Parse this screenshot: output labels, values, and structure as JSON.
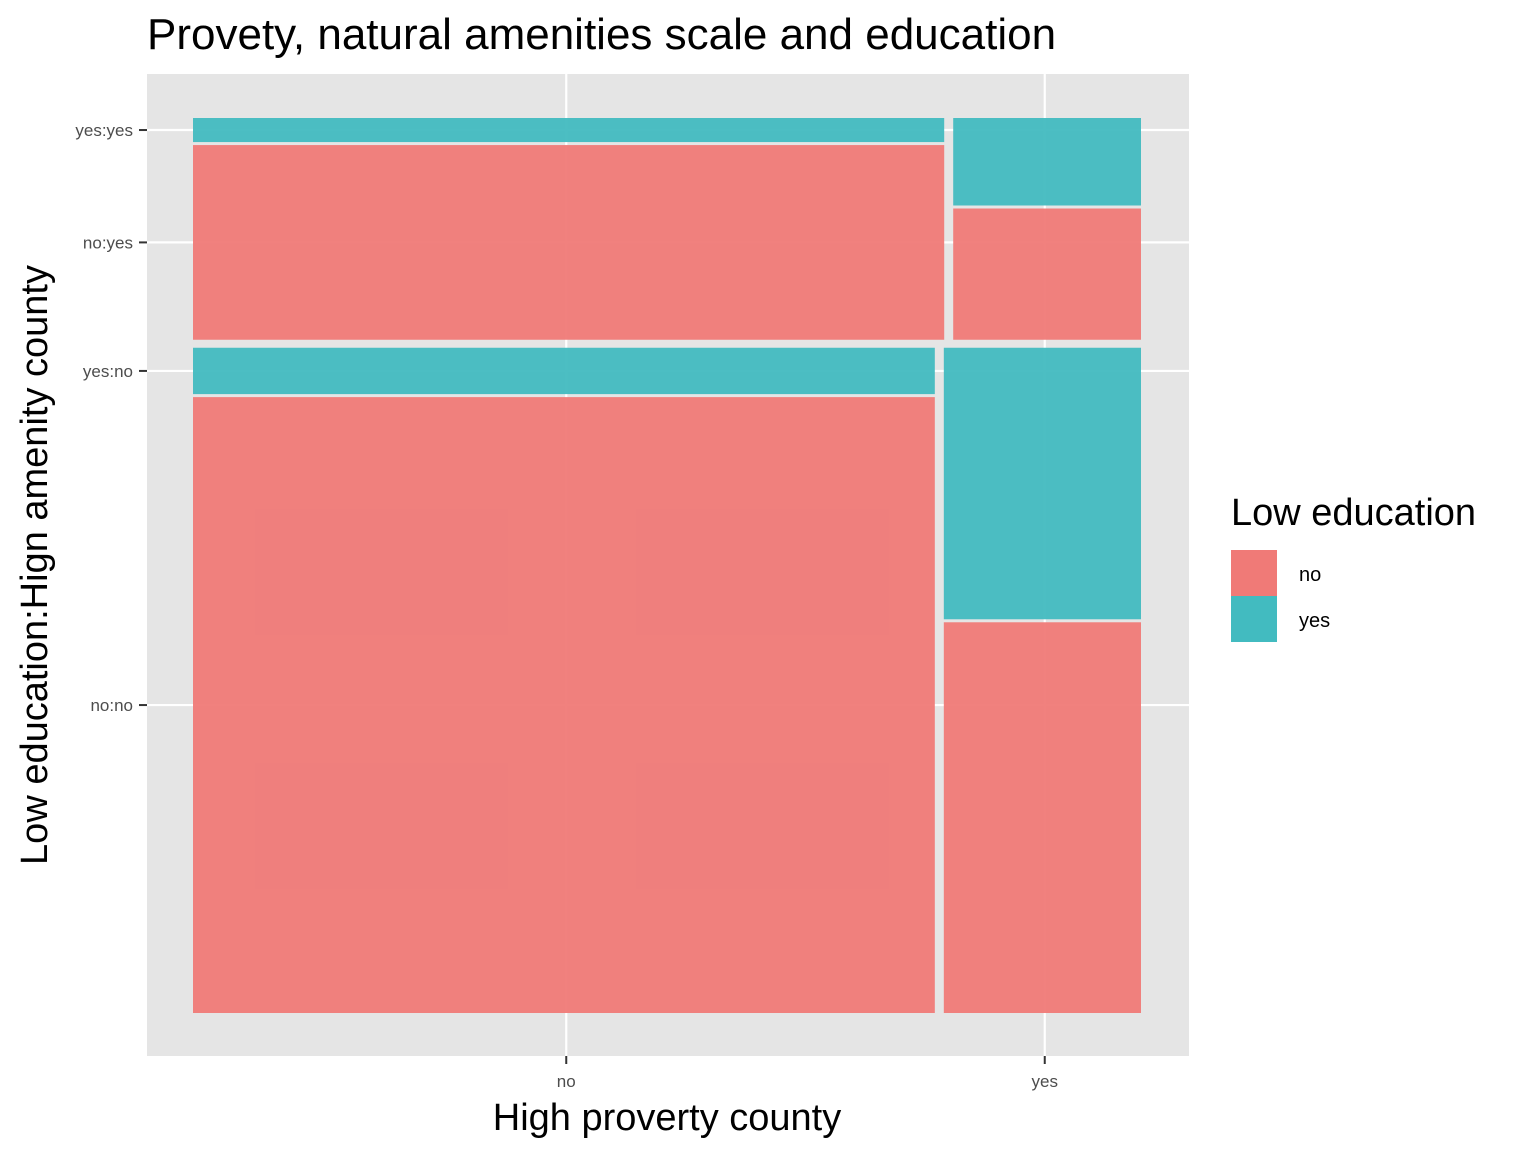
{
  "chart_data": {
    "type": "mosaic",
    "title": "Provety, natural amenities scale and education",
    "xlabel": "High proverty county",
    "ylabel": "Low education:Hign amenity county",
    "x_categories": [
      "no",
      "yes"
    ],
    "y_categories": [
      "no:no",
      "yes:no",
      "no:yes",
      "yes:yes"
    ],
    "legend": {
      "title": "Low education",
      "placement": "right",
      "entries": [
        {
          "label": "no",
          "color": "#F07A77"
        },
        {
          "label": "yes",
          "color": "#42BBC0"
        }
      ]
    },
    "colors": {
      "no": "#F07A77",
      "yes": "#42BBC0"
    },
    "panel_background": "#E5E5E5",
    "grid": true,
    "high_amenity_share": {
      "no": 0.75,
      "yes": 0.25
    },
    "cells": [
      {
        "amenity": "no",
        "poverty": "no",
        "poverty_share": 0.79,
        "low_education_share": {
          "no": 0.93,
          "yes": 0.07
        }
      },
      {
        "amenity": "no",
        "poverty": "yes",
        "poverty_share": 0.21,
        "low_education_share": {
          "no": 0.59,
          "yes": 0.41
        }
      },
      {
        "amenity": "yes",
        "poverty": "no",
        "poverty_share": 0.8,
        "low_education_share": {
          "no": 0.89,
          "yes": 0.11
        }
      },
      {
        "amenity": "yes",
        "poverty": "yes",
        "poverty_share": 0.2,
        "low_education_share": {
          "no": 0.6,
          "yes": 0.4
        }
      }
    ]
  }
}
